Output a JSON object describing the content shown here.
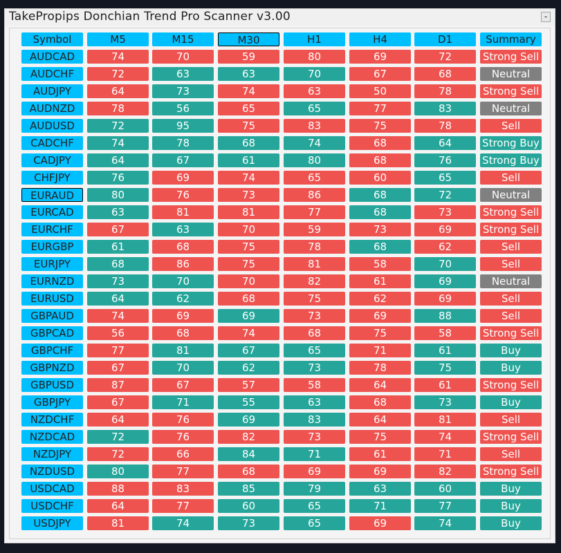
{
  "window": {
    "title": "TakePropips Donchian Trend Pro Scanner v3.00",
    "minimize_label": "-"
  },
  "colors": {
    "header": "#00bfff",
    "sell": "#ef5350",
    "buy": "#26a69a",
    "neutral": "#808080"
  },
  "headers": [
    "Symbol",
    "M5",
    "M15",
    "M30",
    "H1",
    "H4",
    "D1",
    "Summary"
  ],
  "selected_header": "M30",
  "selected_symbol": "EURAUD",
  "rows": [
    {
      "symbol": "AUDCAD",
      "cells": [
        {
          "v": "74",
          "s": "sell"
        },
        {
          "v": "70",
          "s": "sell"
        },
        {
          "v": "59",
          "s": "sell"
        },
        {
          "v": "80",
          "s": "sell"
        },
        {
          "v": "69",
          "s": "sell"
        },
        {
          "v": "72",
          "s": "sell"
        }
      ],
      "summary": "Strong Sell",
      "summary_state": "sell"
    },
    {
      "symbol": "AUDCHF",
      "cells": [
        {
          "v": "72",
          "s": "sell"
        },
        {
          "v": "63",
          "s": "buy"
        },
        {
          "v": "63",
          "s": "buy"
        },
        {
          "v": "70",
          "s": "buy"
        },
        {
          "v": "67",
          "s": "sell"
        },
        {
          "v": "68",
          "s": "sell"
        }
      ],
      "summary": "Neutral",
      "summary_state": "neutral"
    },
    {
      "symbol": "AUDJPY",
      "cells": [
        {
          "v": "64",
          "s": "sell"
        },
        {
          "v": "73",
          "s": "buy"
        },
        {
          "v": "74",
          "s": "sell"
        },
        {
          "v": "63",
          "s": "sell"
        },
        {
          "v": "50",
          "s": "sell"
        },
        {
          "v": "78",
          "s": "sell"
        }
      ],
      "summary": "Strong Sell",
      "summary_state": "sell"
    },
    {
      "symbol": "AUDNZD",
      "cells": [
        {
          "v": "78",
          "s": "sell"
        },
        {
          "v": "56",
          "s": "buy"
        },
        {
          "v": "65",
          "s": "sell"
        },
        {
          "v": "65",
          "s": "buy"
        },
        {
          "v": "77",
          "s": "sell"
        },
        {
          "v": "83",
          "s": "buy"
        }
      ],
      "summary": "Neutral",
      "summary_state": "neutral"
    },
    {
      "symbol": "AUDUSD",
      "cells": [
        {
          "v": "72",
          "s": "buy"
        },
        {
          "v": "95",
          "s": "buy"
        },
        {
          "v": "75",
          "s": "sell"
        },
        {
          "v": "83",
          "s": "sell"
        },
        {
          "v": "75",
          "s": "sell"
        },
        {
          "v": "78",
          "s": "sell"
        }
      ],
      "summary": "Sell",
      "summary_state": "sell"
    },
    {
      "symbol": "CADCHF",
      "cells": [
        {
          "v": "74",
          "s": "buy"
        },
        {
          "v": "78",
          "s": "buy"
        },
        {
          "v": "68",
          "s": "buy"
        },
        {
          "v": "74",
          "s": "buy"
        },
        {
          "v": "68",
          "s": "sell"
        },
        {
          "v": "64",
          "s": "buy"
        }
      ],
      "summary": "Strong Buy",
      "summary_state": "buy"
    },
    {
      "symbol": "CADJPY",
      "cells": [
        {
          "v": "64",
          "s": "buy"
        },
        {
          "v": "67",
          "s": "buy"
        },
        {
          "v": "61",
          "s": "buy"
        },
        {
          "v": "80",
          "s": "buy"
        },
        {
          "v": "68",
          "s": "sell"
        },
        {
          "v": "76",
          "s": "buy"
        }
      ],
      "summary": "Strong Buy",
      "summary_state": "buy"
    },
    {
      "symbol": "CHFJPY",
      "cells": [
        {
          "v": "76",
          "s": "buy"
        },
        {
          "v": "69",
          "s": "sell"
        },
        {
          "v": "74",
          "s": "sell"
        },
        {
          "v": "65",
          "s": "sell"
        },
        {
          "v": "60",
          "s": "sell"
        },
        {
          "v": "65",
          "s": "buy"
        }
      ],
      "summary": "Sell",
      "summary_state": "sell"
    },
    {
      "symbol": "EURAUD",
      "cells": [
        {
          "v": "80",
          "s": "buy"
        },
        {
          "v": "76",
          "s": "sell"
        },
        {
          "v": "73",
          "s": "sell"
        },
        {
          "v": "86",
          "s": "sell"
        },
        {
          "v": "68",
          "s": "buy"
        },
        {
          "v": "72",
          "s": "buy"
        }
      ],
      "summary": "Neutral",
      "summary_state": "neutral"
    },
    {
      "symbol": "EURCAD",
      "cells": [
        {
          "v": "63",
          "s": "buy"
        },
        {
          "v": "81",
          "s": "sell"
        },
        {
          "v": "81",
          "s": "sell"
        },
        {
          "v": "77",
          "s": "sell"
        },
        {
          "v": "68",
          "s": "buy"
        },
        {
          "v": "73",
          "s": "sell"
        }
      ],
      "summary": "Strong Sell",
      "summary_state": "sell"
    },
    {
      "symbol": "EURCHF",
      "cells": [
        {
          "v": "67",
          "s": "sell"
        },
        {
          "v": "63",
          "s": "buy"
        },
        {
          "v": "70",
          "s": "sell"
        },
        {
          "v": "59",
          "s": "sell"
        },
        {
          "v": "73",
          "s": "sell"
        },
        {
          "v": "69",
          "s": "sell"
        }
      ],
      "summary": "Strong Sell",
      "summary_state": "sell"
    },
    {
      "symbol": "EURGBP",
      "cells": [
        {
          "v": "61",
          "s": "buy"
        },
        {
          "v": "68",
          "s": "sell"
        },
        {
          "v": "75",
          "s": "sell"
        },
        {
          "v": "78",
          "s": "sell"
        },
        {
          "v": "68",
          "s": "buy"
        },
        {
          "v": "62",
          "s": "sell"
        }
      ],
      "summary": "Sell",
      "summary_state": "sell"
    },
    {
      "symbol": "EURJPY",
      "cells": [
        {
          "v": "68",
          "s": "buy"
        },
        {
          "v": "86",
          "s": "sell"
        },
        {
          "v": "75",
          "s": "sell"
        },
        {
          "v": "81",
          "s": "sell"
        },
        {
          "v": "58",
          "s": "sell"
        },
        {
          "v": "70",
          "s": "buy"
        }
      ],
      "summary": "Sell",
      "summary_state": "sell"
    },
    {
      "symbol": "EURNZD",
      "cells": [
        {
          "v": "73",
          "s": "buy"
        },
        {
          "v": "70",
          "s": "buy"
        },
        {
          "v": "70",
          "s": "sell"
        },
        {
          "v": "82",
          "s": "sell"
        },
        {
          "v": "61",
          "s": "sell"
        },
        {
          "v": "69",
          "s": "buy"
        }
      ],
      "summary": "Neutral",
      "summary_state": "neutral"
    },
    {
      "symbol": "EURUSD",
      "cells": [
        {
          "v": "64",
          "s": "buy"
        },
        {
          "v": "62",
          "s": "buy"
        },
        {
          "v": "68",
          "s": "sell"
        },
        {
          "v": "75",
          "s": "sell"
        },
        {
          "v": "62",
          "s": "sell"
        },
        {
          "v": "69",
          "s": "sell"
        }
      ],
      "summary": "Sell",
      "summary_state": "sell"
    },
    {
      "symbol": "GBPAUD",
      "cells": [
        {
          "v": "74",
          "s": "sell"
        },
        {
          "v": "69",
          "s": "sell"
        },
        {
          "v": "69",
          "s": "buy"
        },
        {
          "v": "73",
          "s": "sell"
        },
        {
          "v": "69",
          "s": "sell"
        },
        {
          "v": "88",
          "s": "buy"
        }
      ],
      "summary": "Sell",
      "summary_state": "sell"
    },
    {
      "symbol": "GBPCAD",
      "cells": [
        {
          "v": "56",
          "s": "sell"
        },
        {
          "v": "68",
          "s": "sell"
        },
        {
          "v": "74",
          "s": "sell"
        },
        {
          "v": "68",
          "s": "sell"
        },
        {
          "v": "75",
          "s": "sell"
        },
        {
          "v": "58",
          "s": "sell"
        }
      ],
      "summary": "Strong Sell",
      "summary_state": "sell"
    },
    {
      "symbol": "GBPCHF",
      "cells": [
        {
          "v": "77",
          "s": "sell"
        },
        {
          "v": "81",
          "s": "buy"
        },
        {
          "v": "67",
          "s": "buy"
        },
        {
          "v": "65",
          "s": "buy"
        },
        {
          "v": "71",
          "s": "sell"
        },
        {
          "v": "61",
          "s": "buy"
        }
      ],
      "summary": "Buy",
      "summary_state": "buy"
    },
    {
      "symbol": "GBPNZD",
      "cells": [
        {
          "v": "67",
          "s": "sell"
        },
        {
          "v": "70",
          "s": "buy"
        },
        {
          "v": "62",
          "s": "buy"
        },
        {
          "v": "73",
          "s": "buy"
        },
        {
          "v": "78",
          "s": "sell"
        },
        {
          "v": "75",
          "s": "buy"
        }
      ],
      "summary": "Buy",
      "summary_state": "buy"
    },
    {
      "symbol": "GBPUSD",
      "cells": [
        {
          "v": "87",
          "s": "sell"
        },
        {
          "v": "67",
          "s": "sell"
        },
        {
          "v": "57",
          "s": "sell"
        },
        {
          "v": "58",
          "s": "sell"
        },
        {
          "v": "64",
          "s": "sell"
        },
        {
          "v": "61",
          "s": "sell"
        }
      ],
      "summary": "Strong Sell",
      "summary_state": "sell"
    },
    {
      "symbol": "GBPJPY",
      "cells": [
        {
          "v": "67",
          "s": "sell"
        },
        {
          "v": "71",
          "s": "buy"
        },
        {
          "v": "55",
          "s": "buy"
        },
        {
          "v": "63",
          "s": "buy"
        },
        {
          "v": "68",
          "s": "sell"
        },
        {
          "v": "73",
          "s": "buy"
        }
      ],
      "summary": "Buy",
      "summary_state": "buy"
    },
    {
      "symbol": "NZDCHF",
      "cells": [
        {
          "v": "64",
          "s": "sell"
        },
        {
          "v": "76",
          "s": "sell"
        },
        {
          "v": "69",
          "s": "buy"
        },
        {
          "v": "83",
          "s": "buy"
        },
        {
          "v": "64",
          "s": "sell"
        },
        {
          "v": "81",
          "s": "sell"
        }
      ],
      "summary": "Sell",
      "summary_state": "sell"
    },
    {
      "symbol": "NZDCAD",
      "cells": [
        {
          "v": "72",
          "s": "buy"
        },
        {
          "v": "76",
          "s": "sell"
        },
        {
          "v": "82",
          "s": "sell"
        },
        {
          "v": "73",
          "s": "sell"
        },
        {
          "v": "75",
          "s": "sell"
        },
        {
          "v": "74",
          "s": "sell"
        }
      ],
      "summary": "Strong Sell",
      "summary_state": "sell"
    },
    {
      "symbol": "NZDJPY",
      "cells": [
        {
          "v": "72",
          "s": "sell"
        },
        {
          "v": "66",
          "s": "sell"
        },
        {
          "v": "84",
          "s": "buy"
        },
        {
          "v": "71",
          "s": "buy"
        },
        {
          "v": "61",
          "s": "sell"
        },
        {
          "v": "71",
          "s": "sell"
        }
      ],
      "summary": "Sell",
      "summary_state": "sell"
    },
    {
      "symbol": "NZDUSD",
      "cells": [
        {
          "v": "80",
          "s": "buy"
        },
        {
          "v": "77",
          "s": "sell"
        },
        {
          "v": "68",
          "s": "sell"
        },
        {
          "v": "69",
          "s": "sell"
        },
        {
          "v": "69",
          "s": "sell"
        },
        {
          "v": "82",
          "s": "sell"
        }
      ],
      "summary": "Strong Sell",
      "summary_state": "sell"
    },
    {
      "symbol": "USDCAD",
      "cells": [
        {
          "v": "88",
          "s": "sell"
        },
        {
          "v": "83",
          "s": "sell"
        },
        {
          "v": "85",
          "s": "buy"
        },
        {
          "v": "79",
          "s": "buy"
        },
        {
          "v": "63",
          "s": "buy"
        },
        {
          "v": "60",
          "s": "buy"
        }
      ],
      "summary": "Buy",
      "summary_state": "buy"
    },
    {
      "symbol": "USDCHF",
      "cells": [
        {
          "v": "64",
          "s": "sell"
        },
        {
          "v": "77",
          "s": "sell"
        },
        {
          "v": "60",
          "s": "buy"
        },
        {
          "v": "65",
          "s": "buy"
        },
        {
          "v": "71",
          "s": "buy"
        },
        {
          "v": "77",
          "s": "buy"
        }
      ],
      "summary": "Buy",
      "summary_state": "buy"
    },
    {
      "symbol": "USDJPY",
      "cells": [
        {
          "v": "81",
          "s": "sell"
        },
        {
          "v": "74",
          "s": "buy"
        },
        {
          "v": "73",
          "s": "buy"
        },
        {
          "v": "65",
          "s": "buy"
        },
        {
          "v": "69",
          "s": "sell"
        },
        {
          "v": "74",
          "s": "buy"
        }
      ],
      "summary": "Buy",
      "summary_state": "buy"
    }
  ]
}
